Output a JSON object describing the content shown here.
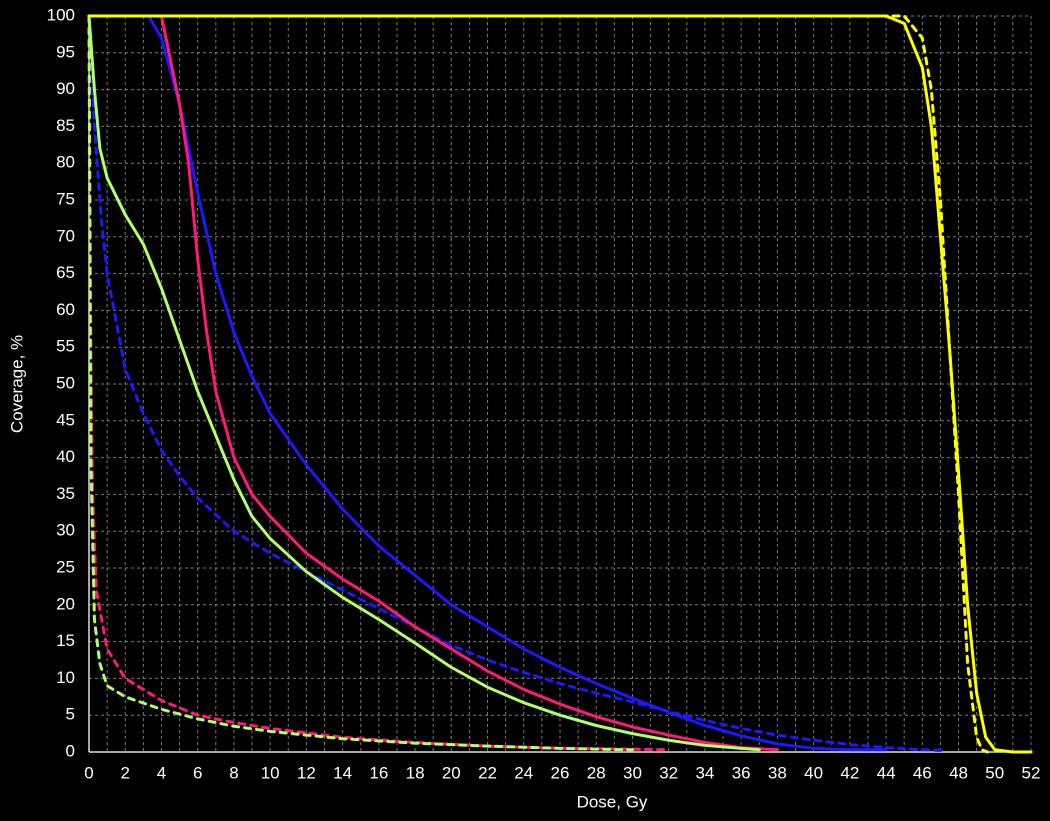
{
  "chart_data": {
    "type": "line",
    "xlabel": "Dose, Gy",
    "ylabel": "Coverage, %",
    "xlim": [
      0,
      52
    ],
    "ylim": [
      0,
      100
    ],
    "xticks": [
      0,
      2,
      4,
      6,
      8,
      10,
      12,
      14,
      16,
      18,
      20,
      22,
      24,
      26,
      28,
      30,
      32,
      34,
      36,
      38,
      40,
      42,
      44,
      46,
      48,
      50,
      52
    ],
    "xminor": [
      1,
      3,
      5,
      7,
      9,
      11,
      13,
      15,
      17,
      19,
      21,
      23,
      25,
      27,
      29,
      31,
      33,
      35,
      37,
      39,
      41,
      43,
      45,
      47,
      49,
      51
    ],
    "yticks": [
      0,
      5,
      10,
      15,
      20,
      25,
      30,
      35,
      40,
      45,
      50,
      55,
      60,
      65,
      70,
      75,
      80,
      85,
      90,
      95,
      100
    ],
    "grid": true,
    "series": [
      {
        "color": "#ffff00",
        "dash": true,
        "x": [
          0,
          45,
          46,
          46.5,
          47,
          47.5,
          48,
          48.5,
          49,
          49.3,
          49.6
        ],
        "values": [
          100,
          100,
          97,
          90,
          75,
          55,
          35,
          12,
          2,
          0.3,
          0
        ]
      },
      {
        "color": "#1a1aff",
        "dash": true,
        "x": [
          0,
          0.3,
          0.7,
          1,
          2,
          3,
          4,
          5,
          6,
          8,
          10,
          12,
          14,
          16,
          18,
          20,
          22,
          24,
          26,
          28,
          30,
          32,
          34,
          36,
          38,
          40,
          42,
          44,
          46,
          47
        ],
        "values": [
          100,
          85,
          72,
          65,
          52,
          46,
          41,
          37.5,
          34.5,
          30,
          27,
          24.5,
          22,
          19.5,
          17,
          14.5,
          12.5,
          10.8,
          9.3,
          8,
          6.8,
          5.5,
          4.3,
          3.2,
          2.3,
          1.6,
          1,
          0.6,
          0.3,
          0.2
        ]
      },
      {
        "color": "#ff1a75",
        "dash": true,
        "x": [
          0,
          0.1,
          0.2,
          0.4,
          1,
          2,
          4,
          6,
          8,
          10,
          14,
          18,
          22,
          26,
          30,
          32
        ],
        "values": [
          100,
          55,
          35,
          22,
          14,
          10,
          7,
          5,
          4,
          3.2,
          2,
          1.3,
          0.8,
          0.5,
          0.4,
          0.3
        ]
      },
      {
        "color": "#b3ff66",
        "dash": true,
        "x": [
          0,
          0.1,
          0.3,
          0.6,
          1,
          2,
          4,
          6,
          8,
          10,
          14,
          18,
          22,
          26,
          30
        ],
        "values": [
          100,
          40,
          18,
          12,
          9,
          7.5,
          5.8,
          4.5,
          3.5,
          2.8,
          1.8,
          1.2,
          0.8,
          0.5,
          0.3
        ]
      },
      {
        "color": "#1a1aff",
        "dash": false,
        "x": [
          0,
          3.3,
          4,
          5,
          6,
          7,
          8,
          9,
          10,
          12,
          14,
          16,
          18,
          20,
          22,
          24,
          26,
          28,
          30,
          32,
          34,
          36,
          38,
          40,
          42,
          44
        ],
        "values": [
          100,
          100,
          97,
          88,
          76,
          65,
          57,
          51,
          46,
          39,
          33,
          28,
          24,
          20,
          17,
          14,
          11.5,
          9.3,
          7.3,
          5.4,
          3.6,
          2.2,
          1.1,
          0.5,
          0.3,
          0.3
        ]
      },
      {
        "color": "#ff1a75",
        "dash": false,
        "x": [
          0,
          4,
          5,
          5.5,
          6,
          6.5,
          7,
          8,
          9,
          10,
          12,
          14,
          16,
          18,
          20,
          22,
          24,
          26,
          28,
          30,
          32,
          34,
          36,
          38
        ],
        "values": [
          100,
          100,
          88,
          80,
          67,
          57,
          49,
          40,
          35,
          32,
          27,
          23.5,
          20.5,
          17,
          14,
          11,
          8.5,
          6.5,
          4.8,
          3.4,
          2.3,
          1.3,
          0.6,
          0.3
        ]
      },
      {
        "color": "#b3ff66",
        "dash": false,
        "x": [
          0,
          0.3,
          0.6,
          1,
          2,
          3,
          4,
          5,
          6,
          7,
          8,
          9,
          10,
          12,
          14,
          16,
          18,
          20,
          22,
          24,
          26,
          28,
          30,
          32,
          34,
          36,
          37
        ],
        "values": [
          100,
          90,
          82,
          78,
          73,
          69,
          63,
          56,
          49,
          43,
          37,
          32,
          29,
          24.5,
          21,
          18,
          14.8,
          11.5,
          8.8,
          6.7,
          5,
          3.6,
          2.5,
          1.6,
          0.9,
          0.5,
          0.3
        ]
      },
      {
        "color": "#ffff00",
        "dash": false,
        "x": [
          0,
          44,
          45,
          46,
          46.5,
          47,
          47.5,
          48,
          48.5,
          49,
          49.5,
          50,
          51,
          52
        ],
        "values": [
          100,
          100,
          99,
          93,
          85,
          70,
          55,
          38,
          20,
          8,
          2,
          0.3,
          0,
          0
        ]
      }
    ]
  }
}
